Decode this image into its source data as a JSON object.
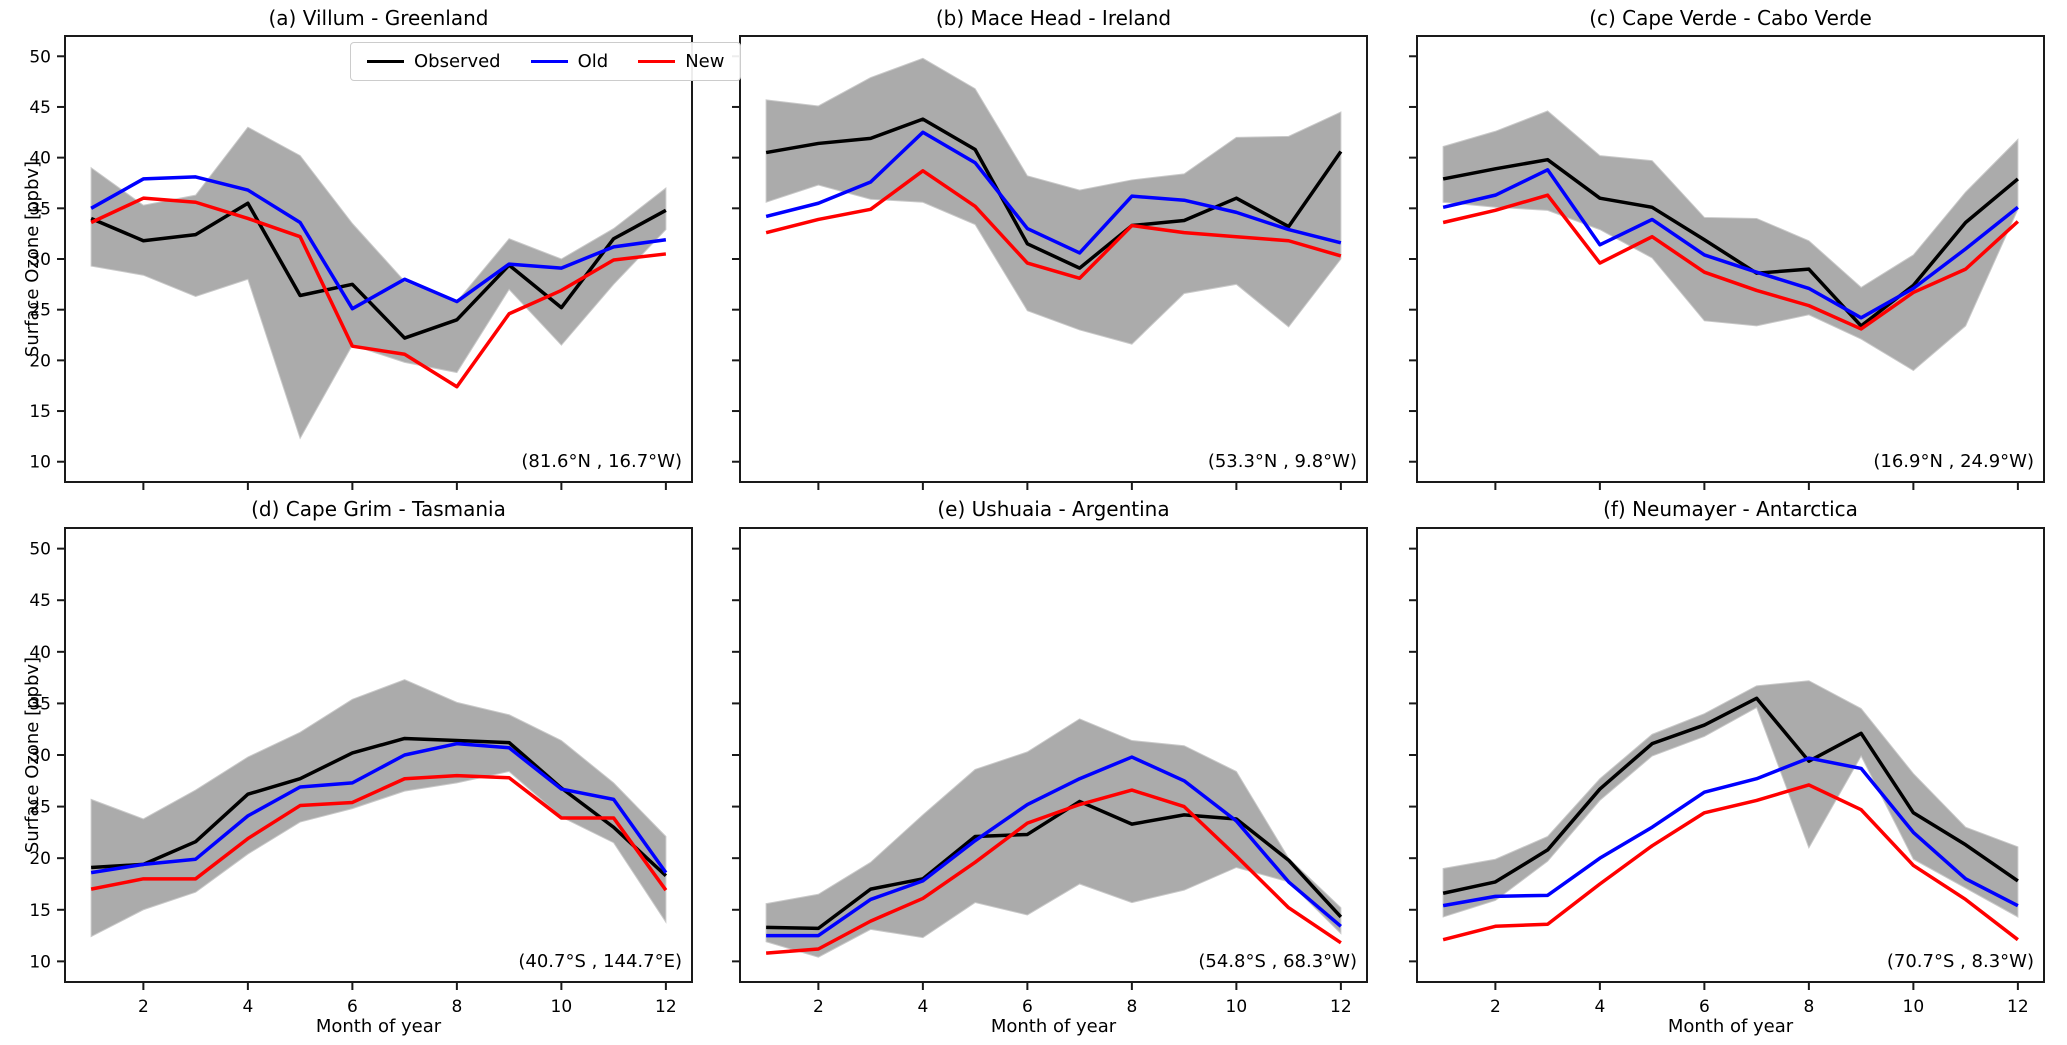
{
  "figure": {
    "ylabel": "Surface Ozone [ppbv]",
    "xlabel": "Month of year",
    "colors": {
      "observed": "#000000",
      "old": "#0000ff",
      "new": "#ff0000",
      "band": "#ababab",
      "band_edge": "#c9c9c9",
      "spine": "#1a1a1a"
    },
    "legend": [
      {
        "label": "Observed",
        "color": "#000000"
      },
      {
        "label": "Old",
        "color": "#0000ff"
      },
      {
        "label": "New",
        "color": "#ff0000"
      }
    ],
    "legend_location": "top right of panel (a)",
    "axes": {
      "xlim": [
        0.5,
        12.5
      ],
      "ylim": [
        8,
        52
      ],
      "xticks": [
        2,
        4,
        6,
        8,
        10,
        12
      ],
      "yticks": [
        10,
        15,
        20,
        25,
        30,
        35,
        40,
        45,
        50
      ],
      "grid": false
    }
  },
  "chart_data": [
    {
      "type": "line",
      "panel": "a",
      "title": "(a) Villum - Greenland",
      "location": "(81.6°N , 16.7°W)",
      "xlabel": "Month of year",
      "ylabel": "Surface Ozone [ppbv]",
      "show_ytick_labels": true,
      "show_xtick_labels": false,
      "x": [
        1,
        2,
        3,
        4,
        5,
        6,
        7,
        8,
        9,
        10,
        11,
        12
      ],
      "series": [
        {
          "name": "Observed",
          "color": "#000000",
          "values": [
            34.0,
            31.8,
            32.4,
            35.5,
            26.4,
            27.5,
            22.2,
            24.0,
            29.4,
            25.2,
            32.0,
            34.8
          ]
        },
        {
          "name": "Old",
          "color": "#0000ff",
          "values": [
            35.0,
            37.9,
            38.1,
            36.8,
            33.6,
            25.1,
            28.0,
            25.8,
            29.5,
            29.1,
            31.2,
            31.9
          ]
        },
        {
          "name": "New",
          "color": "#ff0000",
          "values": [
            33.6,
            36.0,
            35.6,
            34.0,
            32.2,
            21.4,
            20.6,
            17.4,
            24.6,
            26.9,
            29.9,
            30.5
          ]
        }
      ],
      "band": {
        "upper": [
          39.0,
          35.3,
          36.3,
          43.0,
          40.2,
          33.5,
          27.8,
          25.8,
          32.0,
          30.0,
          33.0,
          37.0
        ],
        "lower": [
          29.3,
          28.4,
          26.3,
          28.0,
          12.3,
          21.5,
          19.8,
          18.8,
          27.0,
          21.5,
          27.5,
          32.9
        ]
      }
    },
    {
      "type": "line",
      "panel": "b",
      "title": "(b) Mace Head - Ireland",
      "location": "(53.3°N , 9.8°W)",
      "xlabel": "Month of year",
      "ylabel": "Surface Ozone [ppbv]",
      "show_ytick_labels": false,
      "show_xtick_labels": false,
      "x": [
        1,
        2,
        3,
        4,
        5,
        6,
        7,
        8,
        9,
        10,
        11,
        12
      ],
      "series": [
        {
          "name": "Observed",
          "color": "#000000",
          "values": [
            40.5,
            41.4,
            41.9,
            43.8,
            40.8,
            31.5,
            29.1,
            33.3,
            33.8,
            36.0,
            33.2,
            40.6
          ]
        },
        {
          "name": "Old",
          "color": "#0000ff",
          "values": [
            34.2,
            35.5,
            37.6,
            42.5,
            39.5,
            33.0,
            30.6,
            36.2,
            35.8,
            34.6,
            32.9,
            31.6
          ]
        },
        {
          "name": "New",
          "color": "#ff0000",
          "values": [
            32.6,
            33.9,
            34.9,
            38.7,
            35.2,
            29.6,
            28.1,
            33.3,
            32.6,
            32.2,
            31.8,
            30.3
          ]
        }
      ],
      "band": {
        "upper": [
          45.7,
          45.1,
          47.9,
          49.8,
          46.8,
          38.2,
          36.8,
          37.8,
          38.4,
          42.0,
          42.1,
          44.5
        ],
        "lower": [
          35.6,
          37.3,
          35.9,
          35.6,
          33.4,
          24.9,
          23.0,
          21.6,
          26.6,
          27.5,
          23.3,
          30.0
        ]
      }
    },
    {
      "type": "line",
      "panel": "c",
      "title": "(c) Cape Verde - Cabo Verde",
      "location": "(16.9°N , 24.9°W)",
      "xlabel": "Month of year",
      "ylabel": "Surface Ozone [ppbv]",
      "show_ytick_labels": false,
      "show_xtick_labels": false,
      "x": [
        1,
        2,
        3,
        4,
        5,
        6,
        7,
        8,
        9,
        10,
        11,
        12
      ],
      "series": [
        {
          "name": "Observed",
          "color": "#000000",
          "values": [
            37.9,
            38.9,
            39.8,
            36.0,
            35.1,
            31.9,
            28.6,
            29.0,
            23.4,
            27.4,
            33.6,
            37.9
          ]
        },
        {
          "name": "Old",
          "color": "#0000ff",
          "values": [
            35.1,
            36.3,
            38.8,
            31.4,
            33.9,
            30.4,
            28.7,
            27.1,
            24.2,
            27.1,
            31.0,
            35.1
          ]
        },
        {
          "name": "New",
          "color": "#ff0000",
          "values": [
            33.6,
            34.8,
            36.3,
            29.6,
            32.2,
            28.7,
            26.9,
            25.4,
            23.1,
            26.7,
            29.0,
            33.7
          ]
        }
      ],
      "band": {
        "upper": [
          41.1,
          42.6,
          44.6,
          40.2,
          39.7,
          34.1,
          34.0,
          31.8,
          27.2,
          30.4,
          36.6,
          41.8
        ],
        "lower": [
          35.6,
          35.1,
          34.8,
          32.9,
          30.1,
          23.9,
          23.4,
          24.5,
          22.1,
          19.0,
          23.4,
          34.9
        ]
      }
    },
    {
      "type": "line",
      "panel": "d",
      "title": "(d) Cape Grim - Tasmania",
      "location": "(40.7°S , 144.7°E)",
      "xlabel": "Month of year",
      "ylabel": "Surface Ozone [ppbv]",
      "show_ytick_labels": true,
      "show_xtick_labels": true,
      "x": [
        1,
        2,
        3,
        4,
        5,
        6,
        7,
        8,
        9,
        10,
        11,
        12
      ],
      "series": [
        {
          "name": "Observed",
          "color": "#000000",
          "values": [
            19.1,
            19.4,
            21.6,
            26.2,
            27.7,
            30.2,
            31.6,
            31.4,
            31.2,
            26.8,
            23.0,
            18.3
          ]
        },
        {
          "name": "Old",
          "color": "#0000ff",
          "values": [
            18.6,
            19.4,
            19.9,
            24.1,
            26.9,
            27.3,
            30.0,
            31.1,
            30.7,
            26.7,
            25.7,
            18.6
          ]
        },
        {
          "name": "New",
          "color": "#ff0000",
          "values": [
            17.0,
            18.0,
            18.0,
            21.9,
            25.1,
            25.4,
            27.7,
            28.0,
            27.8,
            23.9,
            23.9,
            16.9
          ]
        }
      ],
      "band": {
        "upper": [
          25.7,
          23.8,
          26.6,
          29.8,
          32.2,
          35.4,
          37.3,
          35.1,
          33.9,
          31.4,
          27.3,
          22.1
        ],
        "lower": [
          12.4,
          15.0,
          16.7,
          20.4,
          23.5,
          24.8,
          26.5,
          27.3,
          28.4,
          24.0,
          21.5,
          13.8
        ]
      }
    },
    {
      "type": "line",
      "panel": "e",
      "title": "(e) Ushuaia - Argentina",
      "location": "(54.8°S , 68.3°W)",
      "xlabel": "Month of year",
      "ylabel": "Surface Ozone [ppbv]",
      "show_ytick_labels": false,
      "show_xtick_labels": true,
      "x": [
        1,
        2,
        3,
        4,
        5,
        6,
        7,
        8,
        9,
        10,
        11,
        12
      ],
      "series": [
        {
          "name": "Observed",
          "color": "#000000",
          "values": [
            13.3,
            13.2,
            17.0,
            18.0,
            22.1,
            22.3,
            25.5,
            23.3,
            24.2,
            23.8,
            19.8,
            14.3
          ]
        },
        {
          "name": "Old",
          "color": "#0000ff",
          "values": [
            12.5,
            12.5,
            16.0,
            17.8,
            21.7,
            25.2,
            27.7,
            29.8,
            27.5,
            23.6,
            17.7,
            13.4
          ]
        },
        {
          "name": "New",
          "color": "#ff0000",
          "values": [
            10.8,
            11.2,
            13.9,
            16.1,
            19.6,
            23.4,
            25.2,
            26.6,
            25.0,
            20.2,
            15.2,
            11.8
          ]
        }
      ],
      "band": {
        "upper": [
          15.6,
          16.5,
          19.6,
          24.2,
          28.6,
          30.3,
          33.5,
          31.4,
          30.9,
          28.4,
          20.0,
          15.2
        ],
        "lower": [
          11.9,
          10.4,
          13.1,
          12.3,
          15.7,
          14.5,
          17.5,
          15.7,
          16.9,
          19.1,
          17.7,
          12.7
        ]
      }
    },
    {
      "type": "line",
      "panel": "f",
      "title": "(f) Neumayer - Antarctica",
      "location": "(70.7°S , 8.3°W)",
      "xlabel": "Month of year",
      "ylabel": "Surface Ozone [ppbv]",
      "show_ytick_labels": false,
      "show_xtick_labels": true,
      "x": [
        1,
        2,
        3,
        4,
        5,
        6,
        7,
        8,
        9,
        10,
        11,
        12
      ],
      "series": [
        {
          "name": "Observed",
          "color": "#000000",
          "values": [
            16.6,
            17.7,
            20.8,
            26.7,
            31.1,
            32.9,
            35.5,
            29.4,
            32.1,
            24.4,
            21.3,
            17.8
          ]
        },
        {
          "name": "Old",
          "color": "#0000ff",
          "values": [
            15.4,
            16.3,
            16.4,
            20.0,
            23.0,
            26.4,
            27.7,
            29.7,
            28.7,
            22.5,
            18.0,
            15.4
          ]
        },
        {
          "name": "New",
          "color": "#ff0000",
          "values": [
            12.1,
            13.4,
            13.6,
            17.5,
            21.2,
            24.4,
            25.6,
            27.1,
            24.7,
            19.3,
            16.0,
            12.1
          ]
        }
      ],
      "band": {
        "upper": [
          19.0,
          19.9,
          22.1,
          27.7,
          32.0,
          34.0,
          36.7,
          37.2,
          34.5,
          28.2,
          23.0,
          21.1
        ],
        "lower": [
          14.3,
          15.9,
          19.7,
          25.6,
          29.9,
          31.8,
          34.6,
          21.0,
          29.9,
          19.9,
          17.1,
          14.3
        ]
      }
    }
  ]
}
